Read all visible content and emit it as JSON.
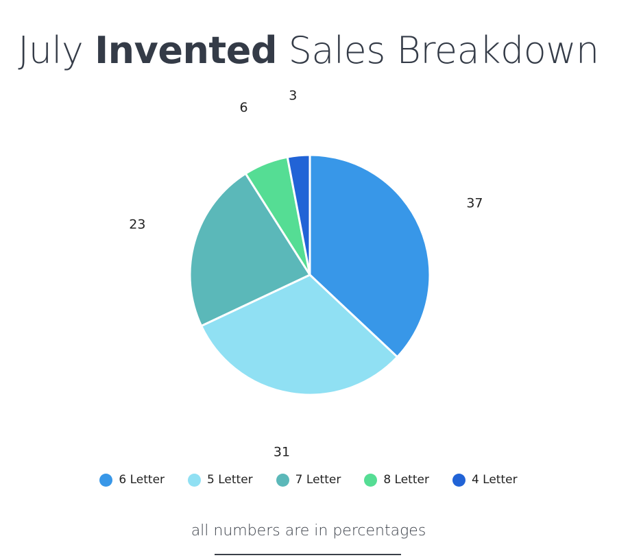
{
  "title": {
    "prefix": "July",
    "bold": "Invented",
    "suffix": "Sales Breakdown"
  },
  "footnote": "all numbers are in percentages",
  "chart_data": {
    "type": "pie",
    "title": "July Invented Sales Breakdown",
    "labels": [
      "6 Letter",
      "5 Letter",
      "7 Letter",
      "8 Letter",
      "4 Letter"
    ],
    "values": [
      37,
      31,
      23,
      6,
      3
    ],
    "colors": [
      "#3897e8",
      "#90e0f3",
      "#5bb8b9",
      "#55dd94",
      "#2163d6"
    ],
    "legend_position": "bottom",
    "start_angle": "12 o'clock",
    "direction": "clockwise",
    "data_labels": "outside"
  }
}
